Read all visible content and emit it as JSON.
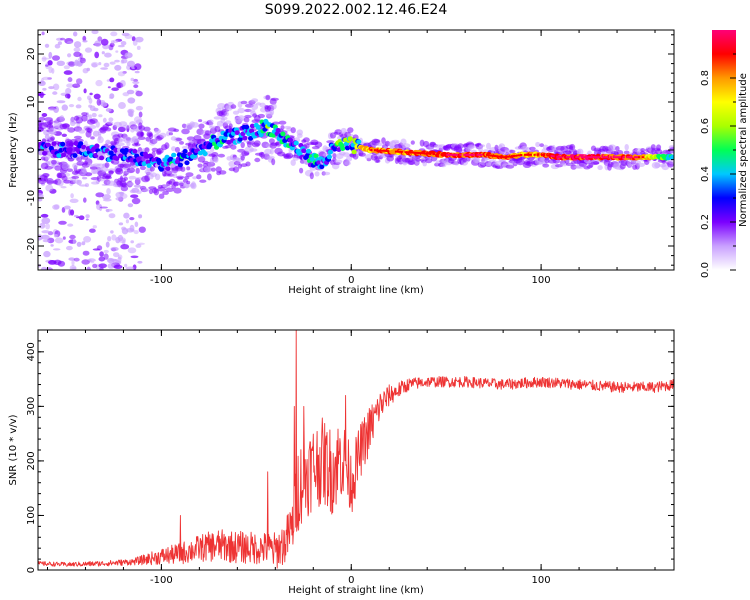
{
  "title": "S099.2022.002.12.46.E24",
  "chart_data": [
    {
      "type": "heatmap",
      "xlabel": "Height of straight line (km)",
      "ylabel": "Frequency (Hz)",
      "xlim": [
        -165,
        170
      ],
      "ylim": [
        -25,
        25
      ],
      "xticks": [
        -100,
        0,
        100
      ],
      "yticks": [
        -20,
        -10,
        0,
        10,
        20
      ],
      "colorbar": {
        "label": "Normalized spectral amplitude",
        "range": [
          0,
          1
        ],
        "ticks": [
          "0.0",
          "0.2",
          "0.4",
          "0.6",
          "0.8"
        ],
        "colors": [
          "#ffffff",
          "#c9a0ff",
          "#7b00ff",
          "#0000ff",
          "#00c8ff",
          "#00ff55",
          "#aaff00",
          "#ffff00",
          "#ff9900",
          "#ff0000",
          "#ff0077"
        ]
      },
      "ridge": {
        "x": [
          -160,
          -140,
          -120,
          -100,
          -90,
          -80,
          -70,
          -60,
          -50,
          -45,
          -40,
          -35,
          -30,
          -25,
          -20,
          -15,
          -10,
          -5,
          0,
          10,
          50,
          70,
          80,
          90,
          100,
          110,
          130,
          150,
          168
        ],
        "freq": [
          0,
          0,
          -1,
          -3,
          -2,
          0,
          2,
          3,
          4,
          5,
          4,
          2,
          1,
          -1,
          -2,
          -3,
          0,
          1,
          1,
          0,
          -1,
          -1,
          -1.5,
          -1,
          -1,
          -1.5,
          -1.5,
          -1.5,
          -1.5
        ],
        "amplitude": [
          0.35,
          0.4,
          0.35,
          0.4,
          0.45,
          0.4,
          0.45,
          0.4,
          0.5,
          0.55,
          0.5,
          0.45,
          0.4,
          0.4,
          0.45,
          0.4,
          0.5,
          0.6,
          0.7,
          0.85,
          0.9,
          0.9,
          0.85,
          0.8,
          0.85,
          0.95,
          0.95,
          0.9,
          0.45
        ]
      }
    },
    {
      "type": "line",
      "xlabel": "Height of straight line (km)",
      "ylabel": "SNR (10 * v/v)",
      "xlim": [
        -165,
        170
      ],
      "ylim": [
        0,
        440
      ],
      "xticks": [
        -100,
        0,
        100
      ],
      "yticks": [
        0,
        100,
        200,
        300,
        400
      ],
      "color": "#ee3333",
      "series": [
        {
          "x": [
            -165,
            -150,
            -130,
            -115,
            -100,
            -90,
            -80,
            -70,
            -60,
            -50,
            -45,
            -40,
            -35,
            -31,
            -28,
            -25,
            -20,
            -15,
            -10,
            -5,
            0,
            5,
            10,
            15,
            20,
            25,
            30,
            40,
            50,
            60,
            80,
            100,
            120,
            140,
            160,
            170
          ],
          "y": [
            12,
            10,
            12,
            15,
            25,
            30,
            40,
            45,
            42,
            40,
            40,
            35,
            50,
            80,
            150,
            170,
            190,
            200,
            180,
            210,
            160,
            220,
            260,
            300,
            320,
            330,
            340,
            345,
            345,
            345,
            340,
            345,
            340,
            335,
            335,
            340
          ],
          "spikes": [
            {
              "x": -29,
              "y": 440
            },
            {
              "x": -30,
              "y": 300
            },
            {
              "x": -44,
              "y": 180
            },
            {
              "x": -3,
              "y": 320
            },
            {
              "x": -25,
              "y": 300
            },
            {
              "x": -90,
              "y": 100
            }
          ],
          "noise_amplitude": [
            4,
            4,
            5,
            6,
            15,
            20,
            25,
            30,
            30,
            30,
            30,
            35,
            40,
            50,
            80,
            80,
            80,
            80,
            80,
            80,
            60,
            50,
            45,
            30,
            20,
            15,
            12,
            10,
            10,
            10,
            10,
            10,
            10,
            10,
            10,
            10
          ]
        }
      ]
    }
  ]
}
